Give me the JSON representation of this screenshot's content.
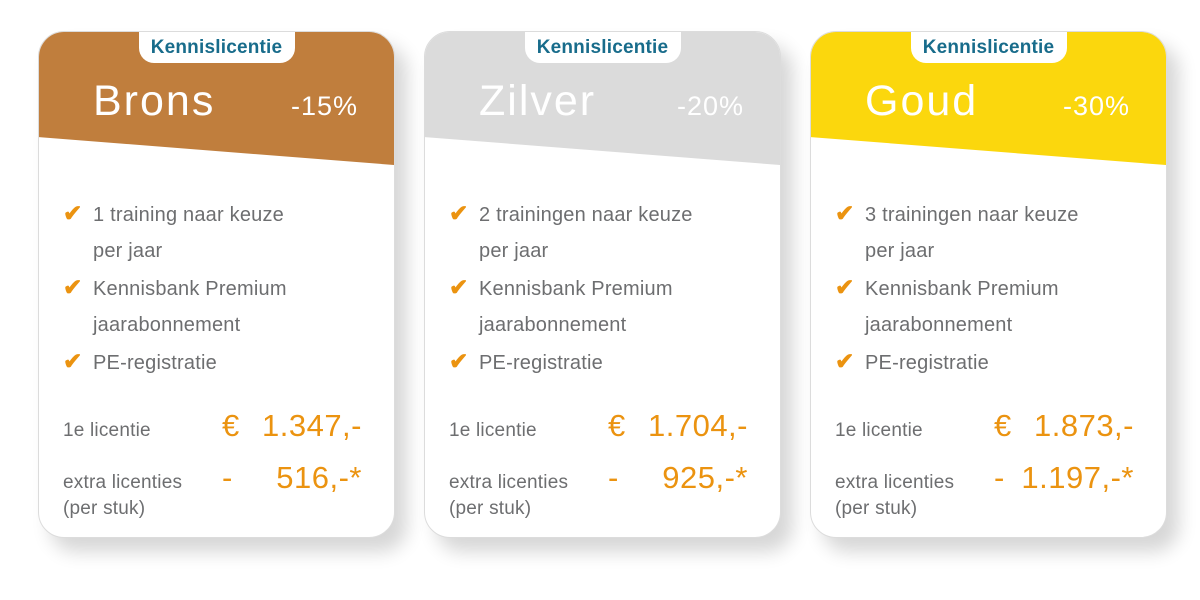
{
  "badge": {
    "label": "Kennislicentie",
    "text_color": "#186C8B"
  },
  "icons": {
    "check": "✔"
  },
  "colors": {
    "accent_orange": "#EB9310",
    "text_gray": "#6D6E70",
    "brons_header": "#C07E3D",
    "zilver_header": "#DBDBDB",
    "goud_header": "#FBD70D",
    "card_background": "#FFFFFF"
  },
  "cards": [
    {
      "name": "Brons",
      "discount": "-15%",
      "header_color": "#C07E3D",
      "features": [
        {
          "check": true,
          "text": "1 training naar keuze"
        },
        {
          "check": false,
          "text": "per jaar"
        },
        {
          "check": true,
          "text": "Kennisbank Premium"
        },
        {
          "check": false,
          "text": "jaarabonnement"
        },
        {
          "check": true,
          "text": "PE-registratie"
        }
      ],
      "pricing": {
        "first": {
          "label": "1e licentie",
          "currency": "€",
          "amount": "1.347,-"
        },
        "extra": {
          "label": "extra licenties",
          "sublabel": "(per stuk)",
          "currency": "-",
          "amount": "516,-*"
        }
      }
    },
    {
      "name": "Zilver",
      "discount": "-20%",
      "header_color": "#DBDBDB",
      "features": [
        {
          "check": true,
          "text": "2 trainingen naar keuze"
        },
        {
          "check": false,
          "text": "per jaar"
        },
        {
          "check": true,
          "text": "Kennisbank Premium"
        },
        {
          "check": false,
          "text": "jaarabonnement"
        },
        {
          "check": true,
          "text": "PE-registratie"
        }
      ],
      "pricing": {
        "first": {
          "label": "1e licentie",
          "currency": "€",
          "amount": "1.704,-"
        },
        "extra": {
          "label": "extra licenties",
          "sublabel": "(per stuk)",
          "currency": "-",
          "amount": "925,-*"
        }
      }
    },
    {
      "name": "Goud",
      "discount": "-30%",
      "header_color": "#FBD70D",
      "features": [
        {
          "check": true,
          "text": "3 trainingen naar keuze"
        },
        {
          "check": false,
          "text": "per jaar"
        },
        {
          "check": true,
          "text": "Kennisbank Premium"
        },
        {
          "check": false,
          "text": "jaarabonnement"
        },
        {
          "check": true,
          "text": "PE-registratie"
        }
      ],
      "pricing": {
        "first": {
          "label": "1e licentie",
          "currency": "€",
          "amount": "1.873,-"
        },
        "extra": {
          "label": "extra licenties",
          "sublabel": "(per stuk)",
          "currency": "-",
          "amount": "1.197,-*"
        }
      }
    }
  ]
}
